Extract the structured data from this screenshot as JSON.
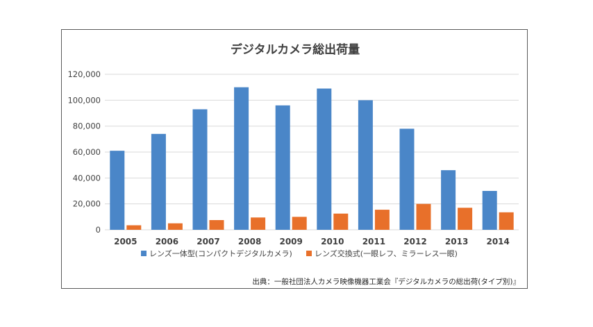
{
  "chart_data": {
    "type": "bar",
    "title": "デジタルカメラ総出荷量",
    "categories": [
      "2005",
      "2006",
      "2007",
      "2008",
      "2009",
      "2010",
      "2011",
      "2012",
      "2013",
      "2014"
    ],
    "series": [
      {
        "name": "レンズ一体型(コンパクトデジタルカメラ)",
        "color": "#4a86c8",
        "values": [
          61000,
          74000,
          93000,
          110000,
          96000,
          109000,
          100000,
          78000,
          46000,
          30000
        ]
      },
      {
        "name": "レンズ交換式(一眼レフ、ミラーレス一眼)",
        "color": "#e8702a",
        "values": [
          3500,
          5000,
          7500,
          9500,
          10000,
          12500,
          15500,
          20000,
          17000,
          13500
        ]
      }
    ],
    "ylim": [
      0,
      120000
    ],
    "yticks": [
      0,
      20000,
      40000,
      60000,
      80000,
      100000,
      120000
    ],
    "ytick_labels": [
      "0",
      "20,000",
      "40,000",
      "60,000",
      "80,000",
      "100,000",
      "120,000"
    ],
    "xlabel": "",
    "ylabel": "",
    "grid": true,
    "legend_position": "bottom"
  },
  "source_note": "出典：一般社団法人カメラ映像機器工業会『デジタルカメラの総出荷(タイプ別)』"
}
